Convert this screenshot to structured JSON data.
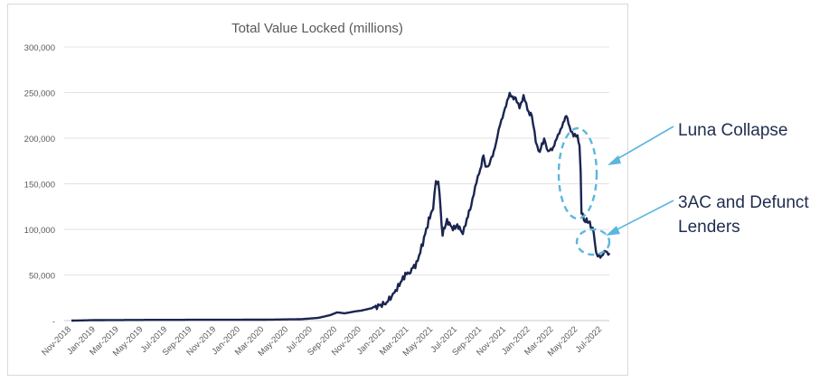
{
  "chart_data": {
    "type": "line",
    "title": "Total Value Locked (millions)",
    "xlabel": "",
    "ylabel": "",
    "ylim": [
      0,
      300000
    ],
    "y_ticks": [
      {
        "value": 0,
        "label": "-"
      },
      {
        "value": 50000,
        "label": "50,000"
      },
      {
        "value": 100000,
        "label": "100,000"
      },
      {
        "value": 150000,
        "label": "150,000"
      },
      {
        "value": 200000,
        "label": "200,000"
      },
      {
        "value": 250000,
        "label": "250,000"
      },
      {
        "value": 300000,
        "label": "300,000"
      }
    ],
    "x_tick_labels": [
      "Nov-2018",
      "Jan-2019",
      "Mar-2019",
      "May-2019",
      "Jul-2019",
      "Sep-2019",
      "Nov-2019",
      "Jan-2020",
      "Mar-2020",
      "May-2020",
      "Jul-2020",
      "Sep-2020",
      "Nov-2020",
      "Jan-2021",
      "Mar-2021",
      "May-2021",
      "Jul-2021",
      "Sep-2021",
      "Nov-2021",
      "Jan-2022",
      "Mar-2022",
      "May-2022",
      "Jul-2022"
    ],
    "grid": true,
    "series": [
      {
        "color": "#1a2550",
        "x": [
          "2018-11-01",
          "2019-01-01",
          "2019-06-01",
          "2019-12-01",
          "2020-03-01",
          "2020-06-01",
          "2020-07-15",
          "2020-08-15",
          "2020-09-01",
          "2020-09-20",
          "2020-10-15",
          "2020-11-01",
          "2020-12-01",
          "2021-01-01",
          "2021-01-20",
          "2021-02-05",
          "2021-02-20",
          "2021-03-05",
          "2021-03-20",
          "2021-04-05",
          "2021-04-20",
          "2021-05-01",
          "2021-05-08",
          "2021-05-14",
          "2021-05-20",
          "2021-05-25",
          "2021-06-05",
          "2021-06-20",
          "2021-07-01",
          "2021-07-15",
          "2021-07-25",
          "2021-08-05",
          "2021-08-15",
          "2021-08-25",
          "2021-09-05",
          "2021-09-10",
          "2021-09-20",
          "2021-10-01",
          "2021-10-10",
          "2021-10-20",
          "2021-11-01",
          "2021-11-10",
          "2021-11-20",
          "2021-11-25",
          "2021-12-05",
          "2021-12-15",
          "2021-12-25",
          "2022-01-05",
          "2022-01-15",
          "2022-01-25",
          "2022-02-05",
          "2022-02-15",
          "2022-02-25",
          "2022-03-05",
          "2022-03-15",
          "2022-03-25",
          "2022-04-02",
          "2022-04-10",
          "2022-04-20",
          "2022-04-30",
          "2022-05-05",
          "2022-05-08",
          "2022-05-10",
          "2022-05-13",
          "2022-05-20",
          "2022-05-31",
          "2022-06-05",
          "2022-06-10",
          "2022-06-13",
          "2022-06-16",
          "2022-06-20",
          "2022-06-30",
          "2022-07-10",
          "2022-07-20"
        ],
        "values": [
          0,
          500,
          800,
          900,
          1000,
          1500,
          3000,
          6000,
          9000,
          8000,
          10000,
          11000,
          14000,
          19000,
          28000,
          40000,
          50000,
          55000,
          62000,
          85000,
          110000,
          125000,
          150000,
          155000,
          120000,
          95000,
          110000,
          100000,
          105000,
          95000,
          112000,
          125000,
          148000,
          160000,
          182000,
          168000,
          172000,
          185000,
          202000,
          220000,
          235000,
          250000,
          242000,
          245000,
          232000,
          248000,
          230000,
          225000,
          195000,
          185000,
          200000,
          185000,
          188000,
          195000,
          207000,
          215000,
          227000,
          210000,
          205000,
          200000,
          195000,
          160000,
          120000,
          115000,
          110000,
          107000,
          103000,
          95000,
          85000,
          75000,
          70000,
          72000,
          75000,
          74000
        ]
      }
    ]
  },
  "annotations": {
    "luna": "Luna Collapse",
    "threeac_line1": "3AC and Defunct",
    "threeac_line2": "Lenders"
  }
}
